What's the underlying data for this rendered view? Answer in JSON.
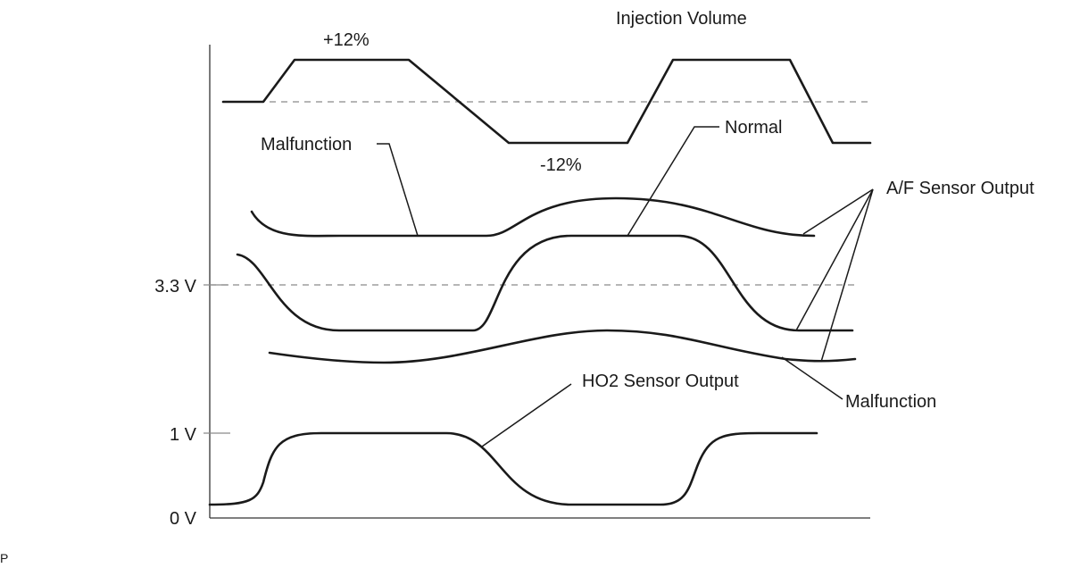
{
  "labels": {
    "injection_volume": "Injection Volume",
    "plus12": "+12%",
    "minus12": "-12%",
    "malfunction_top": "Malfunction",
    "normal": "Normal",
    "af_sensor_output": "A/F Sensor Output",
    "malfunction_bottom": "Malfunction",
    "ho2_sensor_output": "HO2 Sensor Output",
    "corner_mark": "P"
  },
  "axis": {
    "tick_3v3": "3.3 V",
    "tick_1v": "1 V",
    "tick_0v": "0 V"
  }
}
